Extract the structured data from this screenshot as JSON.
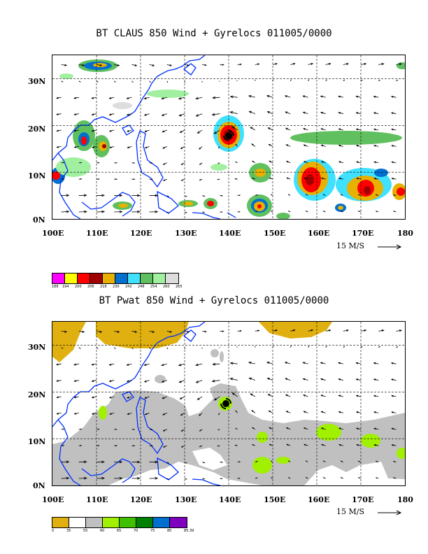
{
  "panels": [
    {
      "id": "claus",
      "title": "BT CLAUS 850 Wind + Gyrelocs 011005/0000",
      "lat_labels": [
        "30N",
        "20N",
        "10N",
        "0N"
      ],
      "lat_values": [
        30,
        20,
        10,
        0
      ],
      "lon_labels": [
        "100E",
        "110E",
        "120E",
        "130E",
        "140E",
        "150E",
        "160E",
        "170E",
        "180"
      ],
      "vector_ref": "15 M/S",
      "legend": {
        "colors": [
          "#ff00ff",
          "#ffff00",
          "#ff0000",
          "#a00000",
          "#e8b000",
          "#0070d0",
          "#40e0ff",
          "#60c060",
          "#a0f0a0",
          "#dddddd"
        ],
        "labels": [
          "188",
          "194",
          "200",
          "206",
          "218",
          "230",
          "242",
          "248",
          "254",
          "260",
          "265"
        ]
      }
    },
    {
      "id": "pwat",
      "title": "BT Pwat 850 Wind + Gyrelocs 011005/0000",
      "lat_labels": [
        "30N",
        "20N",
        "10N",
        "0N"
      ],
      "lat_values": [
        30,
        20,
        10,
        0
      ],
      "lon_labels": [
        "100E",
        "110E",
        "120E",
        "130E",
        "140E",
        "150E",
        "160E",
        "170E",
        "180"
      ],
      "vector_ref": "15 M/S",
      "legend": {
        "colors": [
          "#e0b010",
          "#ffffff",
          "#c0c0c0",
          "#a0f000",
          "#40c000",
          "#008000",
          "#0070d0",
          "#8000c0"
        ],
        "labels": [
          "0",
          "35",
          "55",
          "60",
          "65",
          "70",
          "75",
          "80",
          "85.39"
        ]
      }
    }
  ],
  "map_extent": {
    "lon": [
      100,
      180
    ],
    "lat": [
      0,
      35
    ]
  },
  "cyclone_center": {
    "lon": 139.5,
    "lat": 18.5
  }
}
